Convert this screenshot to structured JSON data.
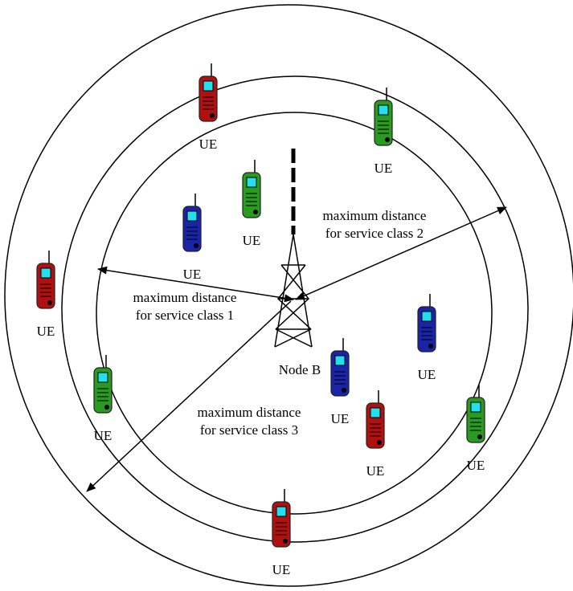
{
  "node_b": {
    "label": "Node B"
  },
  "distances": [
    {
      "lines": [
        "maximum distance",
        "for service class 1"
      ]
    },
    {
      "lines": [
        "maximum distance",
        "for service class 2"
      ]
    },
    {
      "lines": [
        "maximum distance",
        "for service class 3"
      ]
    }
  ],
  "phones": [
    {
      "label": "UE",
      "color": "#b01010"
    },
    {
      "label": "UE",
      "color": "#2a9a20"
    },
    {
      "label": "UE",
      "color": "#2a9a20"
    },
    {
      "label": "UE",
      "color": "#1a24a8"
    },
    {
      "label": "UE",
      "color": "#b01010"
    },
    {
      "label": "UE",
      "color": "#1a24a8"
    },
    {
      "label": "UE",
      "color": "#1a24a8"
    },
    {
      "label": "UE",
      "color": "#2a9a20"
    },
    {
      "label": "UE",
      "color": "#b01010"
    },
    {
      "label": "UE",
      "color": "#2a9a20"
    },
    {
      "label": "UE",
      "color": "#b01010"
    }
  ]
}
